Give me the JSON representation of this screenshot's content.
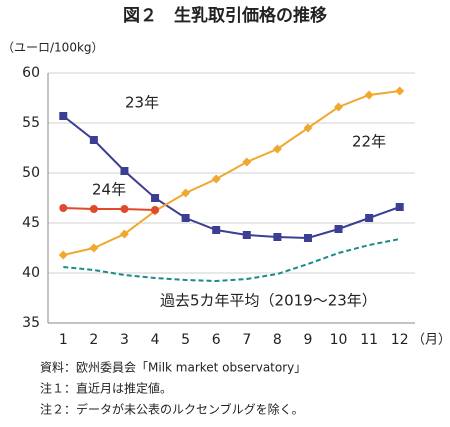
{
  "chart_data": {
    "type": "line",
    "title": "図２　生乳取引価格の推移",
    "y_label": "（ユーロ/100kg）",
    "x_label": "（月）",
    "categories": [
      "1",
      "2",
      "3",
      "4",
      "5",
      "6",
      "7",
      "8",
      "9",
      "10",
      "11",
      "12"
    ],
    "ylim": [
      35,
      60
    ],
    "yticks": [
      35,
      40,
      45,
      50,
      55,
      60
    ],
    "grid": true,
    "series": [
      {
        "name": "23年",
        "color": "#3b3f94",
        "marker": "square",
        "values": [
          55.7,
          53.3,
          50.2,
          47.5,
          45.5,
          44.3,
          43.8,
          43.6,
          43.5,
          44.4,
          45.5,
          46.6
        ]
      },
      {
        "name": "22年",
        "color": "#f0a830",
        "marker": "diamond",
        "values": [
          41.8,
          42.5,
          43.9,
          46.2,
          48.0,
          49.4,
          51.1,
          52.4,
          54.5,
          56.6,
          57.8,
          58.2
        ]
      },
      {
        "name": "24年",
        "color": "#e04a2a",
        "marker": "circle",
        "values": [
          46.5,
          46.4,
          46.4,
          46.3,
          null,
          null,
          null,
          null,
          null,
          null,
          null,
          null
        ]
      },
      {
        "name": "過去5カ年平均（2019～23年）",
        "color": "#1a8a8a",
        "marker": "none",
        "dash": true,
        "values": [
          40.6,
          40.3,
          39.8,
          39.5,
          39.3,
          39.2,
          39.4,
          39.9,
          40.9,
          42.0,
          42.8,
          43.4
        ]
      }
    ],
    "notes": [
      "資料：欧州委員会「Milk market observatory」",
      "注１：直近月は推定値。",
      "注２：データが未公表のルクセンブルグを除く。"
    ]
  }
}
